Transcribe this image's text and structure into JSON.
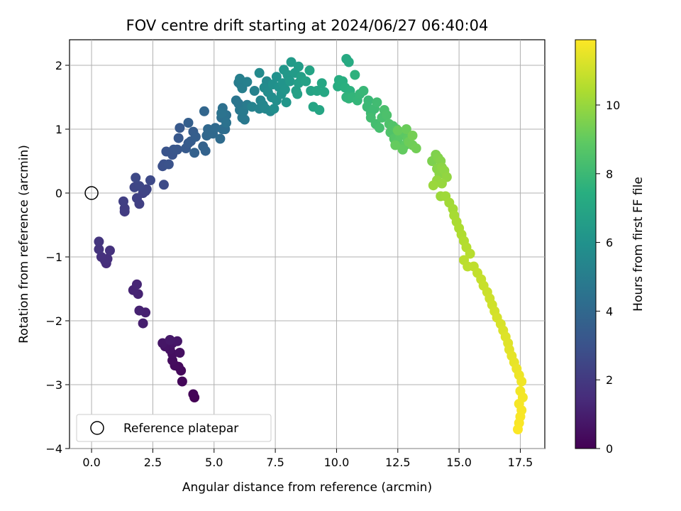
{
  "chart_data": {
    "type": "scatter",
    "title": "FOV centre drift starting at 2024/06/27 06:40:04",
    "xlabel": "Angular distance from reference (arcmin)",
    "ylabel": "Rotation from reference (arcmin)",
    "xlim": [
      -0.9,
      18.5
    ],
    "ylim": [
      -4.0,
      2.4
    ],
    "xticks": [
      0.0,
      2.5,
      5.0,
      7.5,
      10.0,
      12.5,
      15.0,
      17.5
    ],
    "xtick_labels": [
      "0.0",
      "2.5",
      "5.0",
      "7.5",
      "10.0",
      "12.5",
      "15.0",
      "17.5"
    ],
    "yticks": [
      -4,
      -3,
      -2,
      -1,
      0,
      1,
      2
    ],
    "ytick_labels": [
      "−4",
      "−3",
      "−2",
      "−1",
      "0",
      "1",
      "2"
    ],
    "grid": true,
    "colormap": "viridis",
    "colorbar": {
      "label": "Hours from first FF file",
      "range": [
        0,
        11.9
      ],
      "ticks": [
        0,
        2,
        4,
        6,
        8,
        10
      ],
      "tick_labels": [
        "0",
        "2",
        "4",
        "6",
        "8",
        "10"
      ]
    },
    "legend": {
      "position": "lower-left",
      "entries": [
        "Reference platepar"
      ]
    },
    "reference_point": {
      "x": 0.0,
      "y": 0.0
    },
    "points": [
      [
        4.2,
        -3.2,
        0.05
      ],
      [
        4.15,
        -3.15,
        0.1
      ],
      [
        3.7,
        -2.95,
        0.2
      ],
      [
        3.65,
        -2.78,
        0.25
      ],
      [
        3.55,
        -2.72,
        0.3
      ],
      [
        3.4,
        -2.7,
        0.35
      ],
      [
        3.3,
        -2.62,
        0.4
      ],
      [
        3.3,
        -2.52,
        0.45
      ],
      [
        3.6,
        -2.5,
        0.5
      ],
      [
        3.2,
        -2.45,
        0.55
      ],
      [
        3.0,
        -2.4,
        0.6
      ],
      [
        3.3,
        -2.35,
        0.65
      ],
      [
        2.9,
        -2.35,
        0.7
      ],
      [
        3.5,
        -2.32,
        0.75
      ],
      [
        3.2,
        -2.3,
        0.8
      ],
      [
        2.1,
        -2.04,
        1.0
      ],
      [
        2.2,
        -1.87,
        1.05
      ],
      [
        1.95,
        -1.84,
        1.1
      ],
      [
        1.9,
        -1.58,
        1.15
      ],
      [
        1.7,
        -1.52,
        1.2
      ],
      [
        1.85,
        -1.43,
        1.25
      ],
      [
        0.6,
        -1.1,
        1.5
      ],
      [
        0.55,
        -1.06,
        1.55
      ],
      [
        0.65,
        -1.03,
        1.6
      ],
      [
        0.4,
        -1.0,
        1.65
      ],
      [
        0.75,
        -0.9,
        1.7
      ],
      [
        0.3,
        -0.88,
        1.75
      ],
      [
        0.3,
        -0.76,
        1.8
      ],
      [
        1.35,
        -0.29,
        2.1
      ],
      [
        1.35,
        -0.24,
        2.15
      ],
      [
        1.3,
        -0.13,
        2.2
      ],
      [
        1.95,
        -0.17,
        2.25
      ],
      [
        1.85,
        -0.08,
        2.3
      ],
      [
        2.1,
        0.0,
        2.35
      ],
      [
        2.2,
        0.03,
        2.4
      ],
      [
        2.25,
        0.06,
        2.45
      ],
      [
        1.75,
        0.09,
        2.5
      ],
      [
        1.95,
        0.11,
        2.55
      ],
      [
        1.8,
        0.24,
        2.6
      ],
      [
        2.4,
        0.2,
        2.65
      ],
      [
        2.95,
        0.13,
        2.7
      ],
      [
        2.9,
        0.42,
        2.9
      ],
      [
        2.95,
        0.45,
        2.95
      ],
      [
        3.15,
        0.45,
        3.0
      ],
      [
        3.05,
        0.65,
        3.05
      ],
      [
        3.3,
        0.6,
        3.1
      ],
      [
        3.35,
        0.68,
        3.15
      ],
      [
        3.5,
        0.68,
        3.2
      ],
      [
        3.55,
        0.86,
        3.25
      ],
      [
        3.6,
        1.02,
        3.3
      ],
      [
        3.85,
        0.7,
        3.35
      ],
      [
        3.95,
        0.78,
        3.4
      ],
      [
        4.05,
        0.81,
        3.45
      ],
      [
        4.15,
        0.96,
        3.5
      ],
      [
        4.25,
        0.88,
        3.55
      ],
      [
        3.95,
        1.1,
        3.6
      ],
      [
        4.2,
        0.63,
        3.65
      ],
      [
        4.55,
        0.73,
        3.7
      ],
      [
        4.65,
        0.66,
        3.75
      ],
      [
        4.6,
        1.28,
        3.9
      ],
      [
        4.7,
        0.9,
        3.95
      ],
      [
        4.75,
        1.0,
        4.0
      ],
      [
        4.95,
        0.93,
        4.05
      ],
      [
        5.05,
        1.02,
        4.1
      ],
      [
        5.25,
        0.85,
        4.15
      ],
      [
        5.35,
        1.0,
        4.2
      ],
      [
        5.45,
        1.0,
        4.25
      ],
      [
        5.3,
        1.18,
        4.3
      ],
      [
        5.35,
        1.33,
        4.35
      ],
      [
        5.5,
        1.22,
        4.4
      ],
      [
        5.5,
        1.1,
        4.45
      ],
      [
        5.3,
        1.25,
        4.5
      ],
      [
        5.9,
        1.45,
        4.6
      ],
      [
        6.0,
        1.4,
        4.65
      ],
      [
        6.05,
        1.3,
        4.7
      ],
      [
        6.15,
        1.18,
        4.75
      ],
      [
        6.25,
        1.15,
        4.8
      ],
      [
        6.2,
        1.28,
        4.85
      ],
      [
        6.35,
        1.38,
        4.9
      ],
      [
        6.0,
        1.73,
        4.95
      ],
      [
        6.1,
        1.69,
        5.0
      ],
      [
        6.15,
        1.64,
        5.05
      ],
      [
        6.05,
        1.79,
        5.1
      ],
      [
        6.35,
        1.74,
        5.15
      ],
      [
        6.65,
        1.6,
        5.2
      ],
      [
        6.55,
        1.35,
        5.25
      ],
      [
        6.85,
        1.32,
        5.3
      ],
      [
        6.9,
        1.45,
        5.35
      ],
      [
        7.0,
        1.38,
        5.4
      ],
      [
        7.1,
        1.32,
        5.45
      ],
      [
        7.3,
        1.28,
        5.5
      ],
      [
        7.15,
        1.75,
        5.55
      ],
      [
        6.85,
        1.88,
        5.6
      ],
      [
        7.05,
        1.65,
        5.65
      ],
      [
        7.2,
        1.58,
        5.7
      ],
      [
        7.35,
        1.5,
        5.75
      ],
      [
        7.45,
        1.32,
        5.8
      ],
      [
        7.55,
        1.45,
        5.85
      ],
      [
        7.4,
        1.7,
        5.9
      ],
      [
        7.55,
        1.82,
        5.95
      ],
      [
        7.65,
        1.66,
        6.0
      ],
      [
        7.75,
        1.55,
        6.05
      ],
      [
        7.8,
        1.72,
        6.1
      ],
      [
        7.9,
        1.62,
        6.15
      ],
      [
        7.95,
        1.42,
        6.2
      ],
      [
        7.85,
        1.93,
        6.25
      ],
      [
        8.0,
        1.85,
        6.3
      ],
      [
        8.1,
        1.75,
        6.35
      ],
      [
        8.15,
        2.05,
        6.4
      ],
      [
        8.3,
        1.88,
        6.45
      ],
      [
        8.45,
        1.98,
        6.5
      ],
      [
        8.35,
        1.6,
        6.55
      ],
      [
        8.45,
        1.72,
        6.6
      ],
      [
        8.55,
        1.82,
        6.65
      ],
      [
        8.4,
        1.55,
        6.7
      ],
      [
        8.75,
        1.75,
        6.75
      ],
      [
        8.95,
        1.6,
        6.8
      ],
      [
        8.9,
        1.92,
        6.85
      ],
      [
        9.05,
        1.35,
        6.9
      ],
      [
        9.2,
        1.6,
        6.95
      ],
      [
        9.3,
        1.3,
        7.0
      ],
      [
        9.4,
        1.72,
        7.05
      ],
      [
        9.5,
        1.58,
        7.1
      ],
      [
        10.4,
        2.1,
        7.2
      ],
      [
        10.5,
        2.05,
        7.25
      ],
      [
        10.05,
        1.67,
        7.3
      ],
      [
        10.1,
        1.77,
        7.35
      ],
      [
        10.15,
        1.7,
        7.4
      ],
      [
        10.25,
        1.75,
        7.45
      ],
      [
        10.35,
        1.65,
        7.5
      ],
      [
        10.55,
        1.6,
        7.55
      ],
      [
        10.75,
        1.85,
        7.6
      ],
      [
        10.4,
        1.5,
        7.65
      ],
      [
        10.5,
        1.48,
        7.7
      ],
      [
        10.65,
        1.5,
        7.75
      ],
      [
        10.85,
        1.45,
        7.8
      ],
      [
        10.95,
        1.55,
        7.85
      ],
      [
        11.1,
        1.6,
        7.9
      ],
      [
        11.3,
        1.45,
        7.95
      ],
      [
        11.25,
        1.35,
        8.0
      ],
      [
        11.4,
        1.25,
        8.05
      ],
      [
        11.55,
        1.32,
        8.1
      ],
      [
        11.65,
        1.42,
        8.15
      ],
      [
        11.4,
        1.18,
        8.2
      ],
      [
        11.6,
        1.08,
        8.25
      ],
      [
        11.75,
        1.02,
        8.3
      ],
      [
        11.85,
        1.18,
        8.35
      ],
      [
        11.95,
        1.3,
        8.4
      ],
      [
        12.05,
        1.22,
        8.45
      ],
      [
        12.15,
        1.08,
        8.5
      ],
      [
        12.2,
        0.95,
        8.55
      ],
      [
        12.3,
        1.05,
        8.6
      ],
      [
        12.45,
        1.0,
        8.65
      ],
      [
        12.35,
        0.85,
        8.7
      ],
      [
        12.5,
        0.8,
        8.75
      ],
      [
        12.6,
        0.9,
        8.8
      ],
      [
        12.7,
        0.95,
        8.85
      ],
      [
        12.8,
        0.75,
        8.9
      ],
      [
        12.9,
        0.85,
        8.95
      ],
      [
        12.7,
        0.68,
        9.0
      ],
      [
        12.4,
        0.75,
        9.05
      ],
      [
        12.5,
        0.98,
        9.1
      ],
      [
        12.85,
        1.0,
        9.15
      ],
      [
        12.95,
        0.8,
        9.2
      ],
      [
        13.1,
        0.75,
        9.25
      ],
      [
        13.25,
        0.7,
        9.3
      ],
      [
        13.1,
        0.9,
        9.35
      ],
      [
        13.9,
        0.5,
        9.5
      ],
      [
        14.05,
        0.6,
        9.55
      ],
      [
        14.15,
        0.55,
        9.6
      ],
      [
        14.25,
        0.5,
        9.65
      ],
      [
        14.1,
        0.38,
        9.7
      ],
      [
        14.2,
        0.3,
        9.75
      ],
      [
        14.3,
        0.4,
        9.8
      ],
      [
        14.4,
        0.35,
        9.85
      ],
      [
        14.5,
        0.25,
        9.9
      ],
      [
        14.1,
        0.2,
        9.95
      ],
      [
        14.3,
        0.15,
        10.0
      ],
      [
        13.95,
        0.12,
        10.05
      ],
      [
        14.25,
        -0.05,
        10.1
      ],
      [
        14.45,
        -0.05,
        10.15
      ],
      [
        14.6,
        -0.15,
        10.2
      ],
      [
        14.75,
        -0.25,
        10.25
      ],
      [
        14.8,
        -0.35,
        10.3
      ],
      [
        14.9,
        -0.45,
        10.35
      ],
      [
        15.0,
        -0.55,
        10.4
      ],
      [
        15.1,
        -0.65,
        10.45
      ],
      [
        15.2,
        -0.75,
        10.5
      ],
      [
        15.3,
        -0.85,
        10.55
      ],
      [
        15.45,
        -0.95,
        10.6
      ],
      [
        15.2,
        -1.05,
        10.65
      ],
      [
        15.35,
        -1.15,
        10.7
      ],
      [
        15.6,
        -1.15,
        10.75
      ],
      [
        15.75,
        -1.25,
        10.8
      ],
      [
        15.9,
        -1.35,
        10.85
      ],
      [
        16.0,
        -1.45,
        10.9
      ],
      [
        16.15,
        -1.55,
        10.95
      ],
      [
        16.25,
        -1.65,
        11.0
      ],
      [
        16.35,
        -1.75,
        11.05
      ],
      [
        16.45,
        -1.85,
        11.1
      ],
      [
        16.55,
        -1.95,
        11.15
      ],
      [
        16.7,
        -2.05,
        11.2
      ],
      [
        16.8,
        -2.15,
        11.25
      ],
      [
        16.9,
        -2.25,
        11.3
      ],
      [
        17.0,
        -2.35,
        11.35
      ],
      [
        17.05,
        -2.45,
        11.4
      ],
      [
        17.15,
        -2.55,
        11.45
      ],
      [
        17.25,
        -2.65,
        11.5
      ],
      [
        17.35,
        -2.75,
        11.55
      ],
      [
        17.45,
        -2.85,
        11.6
      ],
      [
        17.55,
        -2.95,
        11.65
      ],
      [
        17.5,
        -3.1,
        11.7
      ],
      [
        17.6,
        -3.2,
        11.72
      ],
      [
        17.45,
        -3.3,
        11.75
      ],
      [
        17.55,
        -3.4,
        11.78
      ],
      [
        17.5,
        -3.5,
        11.8
      ],
      [
        17.45,
        -3.6,
        11.83
      ],
      [
        17.4,
        -3.7,
        11.86
      ]
    ]
  }
}
